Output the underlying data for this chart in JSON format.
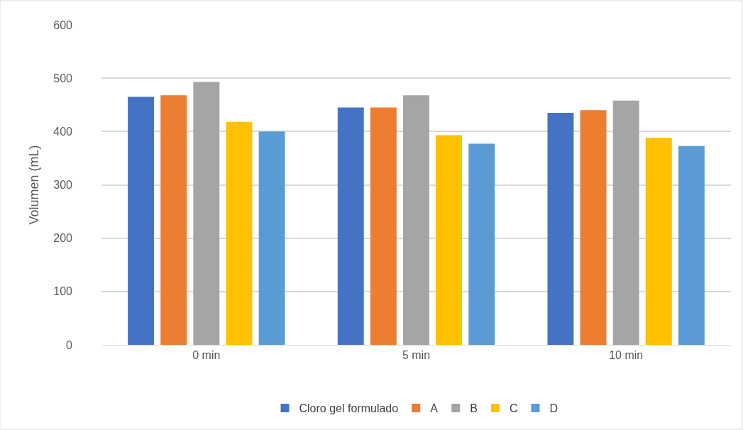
{
  "chart_data": {
    "type": "bar",
    "ylabel": "Volumen (mL)",
    "categories": [
      "0 min",
      "5 min",
      "10 min"
    ],
    "series": [
      {
        "name": "Cloro gel formulado",
        "color": "#4472c4",
        "values": [
          465,
          445,
          435
        ]
      },
      {
        "name": "A",
        "color": "#ed7d31",
        "values": [
          468,
          445,
          440
        ]
      },
      {
        "name": "B",
        "color": "#a5a5a5",
        "values": [
          493,
          468,
          458
        ]
      },
      {
        "name": "C",
        "color": "#ffc000",
        "values": [
          418,
          393,
          388
        ]
      },
      {
        "name": "D",
        "color": "#5b9bd5",
        "values": [
          400,
          377,
          373
        ]
      }
    ],
    "ylim": [
      0,
      600
    ],
    "yticks": [
      0,
      100,
      200,
      300,
      400,
      500,
      600
    ],
    "grid": "y",
    "legend": "bottom"
  }
}
